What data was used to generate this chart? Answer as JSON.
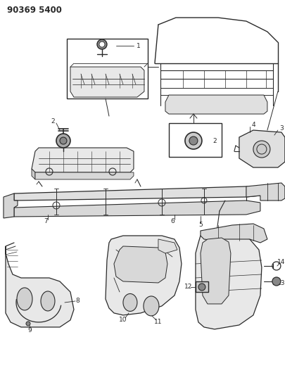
{
  "title": "90369 5400",
  "bg_color": "#ffffff",
  "line_color": "#2a2a2a",
  "fig_width": 4.06,
  "fig_height": 5.33,
  "dpi": 100,
  "label_fontsize": 6.5,
  "title_fontsize": 8.5
}
